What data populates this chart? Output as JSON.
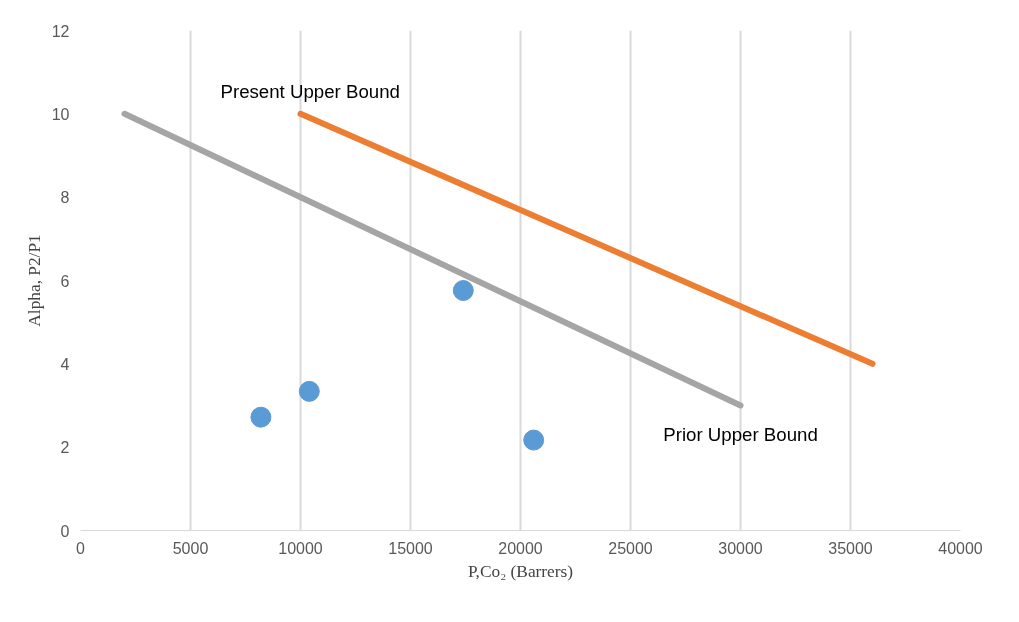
{
  "chart_data": {
    "type": "scatter",
    "xlabel": "P,Co₂ (Barrers)",
    "ylabel": "Alpha, P2/P1",
    "xlim": [
      0,
      40000
    ],
    "xticks": [
      0,
      5000,
      10000,
      15000,
      20000,
      25000,
      30000,
      35000,
      40000
    ],
    "ylim": [
      0,
      12
    ],
    "yticks": [
      0,
      2,
      4,
      6,
      8,
      10,
      12
    ],
    "grid": "x",
    "series": [
      {
        "color": "#5b9bd5",
        "marker": "circle",
        "x": [
          8200,
          10400,
          17400,
          20600
        ],
        "values": [
          2.72,
          3.34,
          5.76,
          2.17
        ]
      },
      {
        "name": "Present Upper Bound",
        "type": "line",
        "color": "#ed7d31",
        "x": [
          10000,
          36000
        ],
        "values": [
          10,
          4
        ]
      },
      {
        "name": "Prior Upper Bound",
        "type": "line",
        "color": "#a5a5a5",
        "x": [
          2000,
          30000
        ],
        "values": [
          10,
          3
        ]
      }
    ]
  }
}
